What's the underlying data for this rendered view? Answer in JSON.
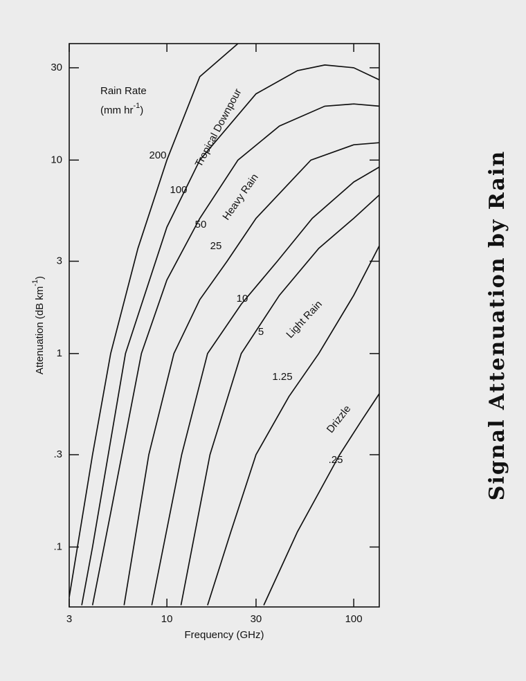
{
  "chart_data": {
    "type": "line",
    "title": "Signal Attenuation by Rain",
    "x_label": "Frequency (GHz)",
    "y_label": [
      "Attenuation (dB km",
      "-1",
      ")"
    ],
    "legend_title": "Rain Rate",
    "legend_unit": [
      "(mm hr",
      "-1",
      ")"
    ],
    "log_x": true,
    "log_y": true,
    "xlim": [
      3,
      137
    ],
    "ylim": [
      0.049,
      40
    ],
    "xticks": [
      3,
      10,
      30,
      100
    ],
    "yticks": [
      {
        "value": 0.1,
        "label": ".1"
      },
      {
        "value": 0.3,
        "label": ".3"
      },
      1,
      3,
      10,
      30
    ],
    "series": [
      {
        "name": "200",
        "color": "#111111",
        "x": [
          3,
          4,
          5,
          7,
          10,
          15,
          24
        ],
        "values": [
          0.055,
          0.3,
          1,
          3.5,
          10,
          27,
          40
        ]
      },
      {
        "name": "100",
        "color": "#111111",
        "x": [
          3.5,
          4,
          6,
          10,
          15,
          30,
          50,
          70,
          100,
          137
        ],
        "values": [
          0.05,
          0.1,
          1,
          4.5,
          10,
          22,
          29,
          31,
          30,
          26
        ]
      },
      {
        "name": "50",
        "color": "#111111",
        "x": [
          4,
          5,
          7.3,
          10,
          15,
          24,
          40,
          70,
          100,
          137
        ],
        "values": [
          0.05,
          0.15,
          1,
          2.4,
          5,
          10,
          15,
          19,
          19.5,
          19
        ]
      },
      {
        "name": "25",
        "color": "#111111",
        "x": [
          5.9,
          8,
          10.9,
          15,
          21,
          30,
          59,
          100,
          137
        ],
        "values": [
          0.05,
          0.3,
          1,
          1.9,
          3,
          5,
          10,
          12,
          12.3
        ]
      },
      {
        "name": "10",
        "color": "#111111",
        "x": [
          8.3,
          12,
          16.5,
          25,
          39,
          60,
          100,
          137
        ],
        "values": [
          0.05,
          0.3,
          1,
          1.8,
          3,
          5,
          7.7,
          9.2
        ]
      },
      {
        "name": "5",
        "color": "#111111",
        "x": [
          11.9,
          17,
          25,
          40,
          65,
          100,
          137
        ],
        "values": [
          0.05,
          0.3,
          1,
          2,
          3.5,
          5,
          6.6
        ]
      },
      {
        "name": "1.25",
        "color": "#111111",
        "x": [
          16.5,
          22,
          30,
          45,
          65,
          100,
          137
        ],
        "values": [
          0.05,
          0.12,
          0.3,
          0.6,
          1,
          2,
          3.6
        ]
      },
      {
        "name": ".25",
        "color": "#111111",
        "x": [
          33,
          50,
          84,
          110,
          137
        ],
        "values": [
          0.05,
          0.12,
          0.3,
          0.45,
          0.62
        ]
      }
    ],
    "annotations": [
      "Tropical Downpour",
      "Heavy Rain",
      "Light Rain",
      "Drizzle"
    ]
  }
}
